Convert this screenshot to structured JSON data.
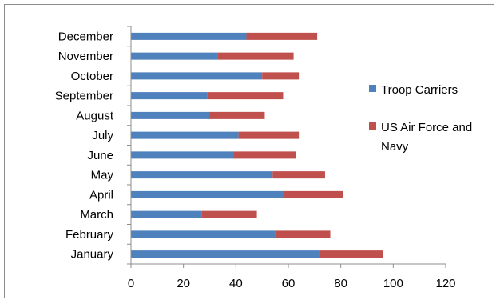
{
  "chart_data": {
    "type": "bar",
    "orientation": "horizontal",
    "stacked": true,
    "categories": [
      "January",
      "February",
      "March",
      "April",
      "May",
      "June",
      "July",
      "August",
      "September",
      "October",
      "November",
      "December"
    ],
    "series": [
      {
        "name": "Troop Carriers",
        "color": "#4f81bd",
        "values": [
          72,
          55,
          27,
          58,
          54,
          39,
          41,
          30,
          29,
          50,
          33,
          44
        ]
      },
      {
        "name": "US Air Force and Navy",
        "color": "#c0504d",
        "values": [
          24,
          21,
          21,
          23,
          20,
          24,
          23,
          21,
          29,
          14,
          29,
          27
        ]
      }
    ],
    "xlim": [
      0,
      120
    ],
    "xticks": [
      "0",
      "20",
      "40",
      "60",
      "80",
      "100",
      "120"
    ],
    "grid": false,
    "legend_position": "right",
    "legend": {
      "item1_label": "Troop Carriers",
      "item2_line1": "US Air Force and",
      "item2_line2": "Navy"
    }
  }
}
